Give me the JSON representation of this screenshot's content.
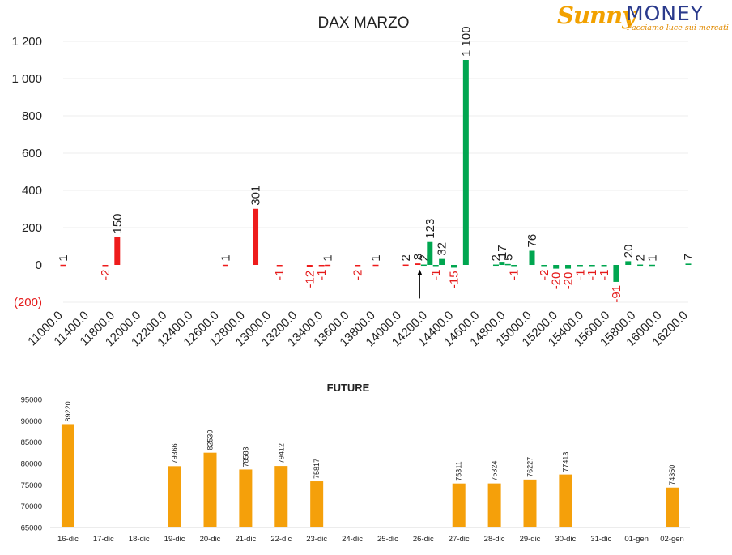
{
  "logo": {
    "word1": "Sunny",
    "word2": "MONEY",
    "tagline": "Facciamo luce sui mercati"
  },
  "colors": {
    "positive": "#00a650",
    "negative": "#ee1c1c",
    "future": "#f5a00a",
    "neg_label": "#e41a1a",
    "text": "#222222",
    "grid": "#ececec"
  },
  "chart_data": [
    {
      "type": "bar",
      "title": "DAX MARZO",
      "xlabel": "",
      "ylabel": "",
      "ylim": [
        -200,
        1200
      ],
      "y_ticks": [
        "(200)",
        "0",
        "200",
        "400",
        "600",
        "800",
        "1 000",
        "1 200"
      ],
      "y_tick_values": [
        -200,
        0,
        200,
        400,
        600,
        800,
        1000,
        1200
      ],
      "x_tick_labels": [
        "11000.0",
        "11400.0",
        "11800.0",
        "12000.0",
        "12200.0",
        "12400.0",
        "12600.0",
        "12800.0",
        "13000.0",
        "13200.0",
        "13400.0",
        "13600.0",
        "13800.0",
        "14000.0",
        "14200.0",
        "14400.0",
        "14600.0",
        "14800.0",
        "15000.0",
        "15200.0",
        "15400.0",
        "15600.0",
        "15800.0",
        "16000.0",
        "16200.0"
      ],
      "x_range": [
        11000,
        16200
      ],
      "bars": [
        {
          "x": 11000,
          "value": 1,
          "label": "1"
        },
        {
          "x": 11350,
          "value": -2,
          "label": "-2"
        },
        {
          "x": 11450,
          "value": 150,
          "label": "150"
        },
        {
          "x": 12350,
          "value": 1,
          "label": "1"
        },
        {
          "x": 12600,
          "value": 301,
          "label": "301"
        },
        {
          "x": 12800,
          "value": -1,
          "label": "-1"
        },
        {
          "x": 13050,
          "value": -12,
          "label": "-12"
        },
        {
          "x": 13150,
          "value": -1,
          "label": "-1"
        },
        {
          "x": 13200,
          "value": 1,
          "label": "1"
        },
        {
          "x": 13450,
          "value": -2,
          "label": "-2"
        },
        {
          "x": 13600,
          "value": 1,
          "label": "1"
        },
        {
          "x": 13850,
          "value": 2,
          "label": "2"
        },
        {
          "x": 13950,
          "value": 8,
          "label": "8"
        },
        {
          "x": 14000,
          "value": 2,
          "label": "2"
        },
        {
          "x": 14050,
          "value": 123,
          "label": "123"
        },
        {
          "x": 14100,
          "value": -1,
          "label": "-1"
        },
        {
          "x": 14150,
          "value": 32,
          "label": "32"
        },
        {
          "x": 14250,
          "value": -15,
          "label": "-15"
        },
        {
          "x": 14350,
          "value": 1100,
          "label": "1 100"
        },
        {
          "x": 14600,
          "value": 2,
          "label": "2"
        },
        {
          "x": 14650,
          "value": 17,
          "label": "17"
        },
        {
          "x": 14700,
          "value": 5,
          "label": "5"
        },
        {
          "x": 14750,
          "value": -1,
          "label": "-1"
        },
        {
          "x": 14900,
          "value": 76,
          "label": "76"
        },
        {
          "x": 15000,
          "value": -2,
          "label": "-2"
        },
        {
          "x": 15100,
          "value": -20,
          "label": "-20"
        },
        {
          "x": 15200,
          "value": -20,
          "label": "-20"
        },
        {
          "x": 15300,
          "value": -1,
          "label": "-1"
        },
        {
          "x": 15400,
          "value": -1,
          "label": "-1"
        },
        {
          "x": 15500,
          "value": -1,
          "label": "-1"
        },
        {
          "x": 15600,
          "value": -91,
          "label": "-91"
        },
        {
          "x": 15700,
          "value": 20,
          "label": "20"
        },
        {
          "x": 15800,
          "value": 2,
          "label": "2"
        },
        {
          "x": 15900,
          "value": 1,
          "label": "1"
        },
        {
          "x": 16200,
          "value": 7,
          "label": "7"
        }
      ],
      "annotation": {
        "type": "arrow",
        "x": 14000,
        "from_value": -180,
        "to_value": -25
      },
      "grid": true
    },
    {
      "type": "bar",
      "title": "FUTURE",
      "xlabel": "",
      "ylabel": "",
      "ylim": [
        65000,
        95000
      ],
      "y_ticks": [
        "65000",
        "70000",
        "75000",
        "80000",
        "85000",
        "90000",
        "95000"
      ],
      "y_tick_values": [
        65000,
        70000,
        75000,
        80000,
        85000,
        90000,
        95000
      ],
      "categories": [
        "16-dic",
        "17-dic",
        "18-dic",
        "19-dic",
        "20-dic",
        "21-dic",
        "22-dic",
        "23-dic",
        "24-dic",
        "25-dic",
        "26-dic",
        "27-dic",
        "28-dic",
        "29-dic",
        "30-dic",
        "31-dic",
        "01-gen",
        "02-gen"
      ],
      "values": [
        89220,
        null,
        null,
        79366,
        82530,
        78583,
        79412,
        75817,
        null,
        null,
        null,
        75311,
        75324,
        76227,
        77413,
        null,
        null,
        74350
      ],
      "labels": [
        "89220",
        "",
        "",
        "79366",
        "82530",
        "78583",
        "79412",
        "75817",
        "",
        "",
        "",
        "75311",
        "75324",
        "76227",
        "77413",
        "",
        "",
        "74350"
      ],
      "grid": false
    }
  ]
}
